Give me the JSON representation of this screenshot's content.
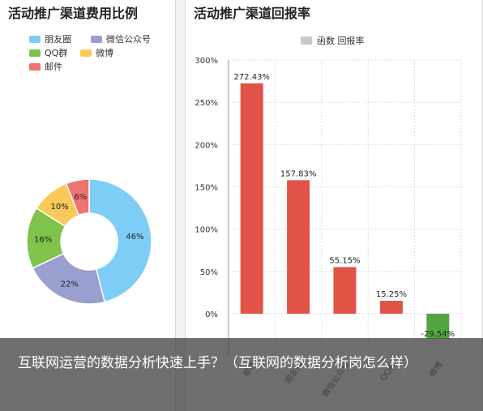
{
  "panels": {
    "left_title": "活动推广渠道费用比例",
    "right_title": "活动推广渠道回报率"
  },
  "chart_data": [
    {
      "type": "pie",
      "title": "活动推广渠道费用比例",
      "legend": [
        "朋友圈",
        "微信公众号",
        "QQ群",
        "微博",
        "邮件"
      ],
      "legend_position": "top",
      "slices": [
        {
          "name": "朋友圈",
          "value": 46,
          "label": "46%",
          "color": "#7ecdf6"
        },
        {
          "name": "微信公众号",
          "value": 22,
          "label": "22%",
          "color": "#999fce"
        },
        {
          "name": "QQ群",
          "value": 16,
          "label": "16%",
          "color": "#7fc34a"
        },
        {
          "name": "微博",
          "value": 10,
          "label": "10%",
          "color": "#fac959"
        },
        {
          "name": "邮件",
          "value": 6,
          "label": "6%",
          "color": "#ef7371"
        }
      ]
    },
    {
      "type": "bar",
      "title": "活动推广渠道回报率",
      "legend": [
        "函数 回报率"
      ],
      "legend_position": "top",
      "categories": [
        "邮件",
        "朋友圈",
        "微信公众号",
        "QQ群",
        "微博"
      ],
      "values": [
        272.43,
        157.83,
        55.15,
        15.25,
        -29.54
      ],
      "value_labels": [
        "272.43%",
        "157.83%",
        "55.15%",
        "15.25%",
        "-29.54%"
      ],
      "yticks": [
        0,
        50,
        100,
        150,
        200,
        250,
        300
      ],
      "ytick_labels": [
        "0%",
        "50%",
        "100%",
        "150%",
        "200%",
        "250%",
        "300%"
      ],
      "ylim": [
        -50,
        300
      ],
      "grid": true,
      "colors": {
        "positive": "#e05346",
        "negative": "#52a540"
      }
    }
  ],
  "caption": "互联网运营的数据分析快速上手？（互联网的数据分析岗怎么样）"
}
